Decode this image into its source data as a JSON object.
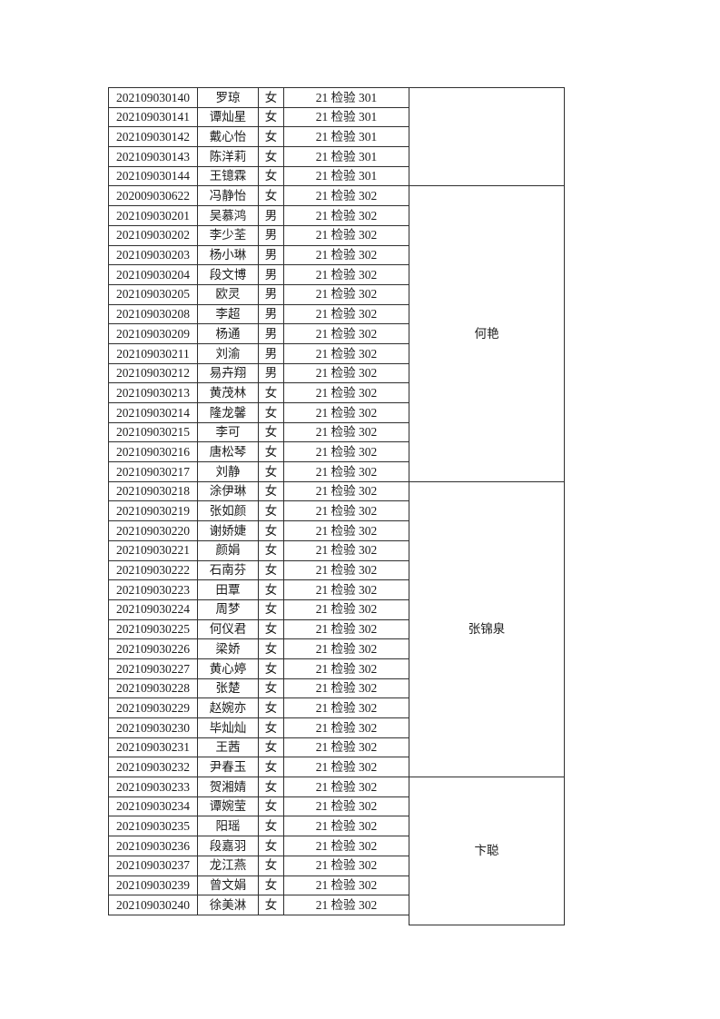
{
  "page": {
    "background_color": "#ffffff",
    "text_color": "#1c1c1c",
    "border_color": "#2f2f2f"
  },
  "table": {
    "columns": [
      "student_id",
      "name",
      "gender",
      "class",
      "teacher"
    ],
    "groups": [
      {
        "teacher": "",
        "rows": [
          {
            "id": "202109030140",
            "name": "罗琼",
            "gender": "女",
            "class": "21 检验 301"
          },
          {
            "id": "202109030141",
            "name": "谭灿星",
            "gender": "女",
            "class": "21 检验 301"
          },
          {
            "id": "202109030142",
            "name": "戴心怡",
            "gender": "女",
            "class": "21 检验 301"
          },
          {
            "id": "202109030143",
            "name": "陈洋莉",
            "gender": "女",
            "class": "21 检验 301"
          },
          {
            "id": "202109030144",
            "name": "王镱霖",
            "gender": "女",
            "class": "21 检验 301"
          }
        ]
      },
      {
        "teacher": "何艳",
        "rows": [
          {
            "id": "202009030622",
            "name": "冯静怡",
            "gender": "女",
            "class": "21 检验 302"
          },
          {
            "id": "202109030201",
            "name": "吴慕鸿",
            "gender": "男",
            "class": "21 检验 302"
          },
          {
            "id": "202109030202",
            "name": "李少荃",
            "gender": "男",
            "class": "21 检验 302"
          },
          {
            "id": "202109030203",
            "name": "杨小琳",
            "gender": "男",
            "class": "21 检验 302"
          },
          {
            "id": "202109030204",
            "name": "段文博",
            "gender": "男",
            "class": "21 检验 302"
          },
          {
            "id": "202109030205",
            "name": "欧灵",
            "gender": "男",
            "class": "21 检验 302"
          },
          {
            "id": "202109030208",
            "name": "李超",
            "gender": "男",
            "class": "21 检验 302"
          },
          {
            "id": "202109030209",
            "name": "杨通",
            "gender": "男",
            "class": "21 检验 302"
          },
          {
            "id": "202109030211",
            "name": "刘渝",
            "gender": "男",
            "class": "21 检验 302"
          },
          {
            "id": "202109030212",
            "name": "易卉翔",
            "gender": "男",
            "class": "21 检验 302"
          },
          {
            "id": "202109030213",
            "name": "黄茂林",
            "gender": "女",
            "class": "21 检验 302"
          },
          {
            "id": "202109030214",
            "name": "隆龙馨",
            "gender": "女",
            "class": "21 检验 302"
          },
          {
            "id": "202109030215",
            "name": "李可",
            "gender": "女",
            "class": "21 检验 302"
          },
          {
            "id": "202109030216",
            "name": "唐松琴",
            "gender": "女",
            "class": "21 检验 302"
          },
          {
            "id": "202109030217",
            "name": "刘静",
            "gender": "女",
            "class": "21 检验 302"
          }
        ]
      },
      {
        "teacher": "张锦泉",
        "rows": [
          {
            "id": "202109030218",
            "name": "涂伊琳",
            "gender": "女",
            "class": "21 检验 302"
          },
          {
            "id": "202109030219",
            "name": "张如颜",
            "gender": "女",
            "class": "21 检验 302"
          },
          {
            "id": "202109030220",
            "name": "谢娇婕",
            "gender": "女",
            "class": "21 检验 302"
          },
          {
            "id": "202109030221",
            "name": "颜娟",
            "gender": "女",
            "class": "21 检验 302"
          },
          {
            "id": "202109030222",
            "name": "石南芬",
            "gender": "女",
            "class": "21 检验 302"
          },
          {
            "id": "202109030223",
            "name": "田覃",
            "gender": "女",
            "class": "21 检验 302"
          },
          {
            "id": "202109030224",
            "name": "周梦",
            "gender": "女",
            "class": "21 检验 302"
          },
          {
            "id": "202109030225",
            "name": "何仪君",
            "gender": "女",
            "class": "21 检验 302"
          },
          {
            "id": "202109030226",
            "name": "梁娇",
            "gender": "女",
            "class": "21 检验 302"
          },
          {
            "id": "202109030227",
            "name": "黄心婷",
            "gender": "女",
            "class": "21 检验 302"
          },
          {
            "id": "202109030228",
            "name": "张楚",
            "gender": "女",
            "class": "21 检验 302"
          },
          {
            "id": "202109030229",
            "name": "赵婉亦",
            "gender": "女",
            "class": "21 检验 302"
          },
          {
            "id": "202109030230",
            "name": "毕灿灿",
            "gender": "女",
            "class": "21 检验 302"
          },
          {
            "id": "202109030231",
            "name": "王茜",
            "gender": "女",
            "class": "21 检验 302"
          },
          {
            "id": "202109030232",
            "name": "尹春玉",
            "gender": "女",
            "class": "21 检验 302"
          }
        ]
      },
      {
        "teacher": "卞聪",
        "rows": [
          {
            "id": "202109030233",
            "name": "贺湘婧",
            "gender": "女",
            "class": "21 检验 302"
          },
          {
            "id": "202109030234",
            "name": "谭婉莹",
            "gender": "女",
            "class": "21 检验 302"
          },
          {
            "id": "202109030235",
            "name": "阳瑶",
            "gender": "女",
            "class": "21 检验 302"
          },
          {
            "id": "202109030236",
            "name": "段嘉羽",
            "gender": "女",
            "class": "21 检验 302"
          },
          {
            "id": "202109030237",
            "name": "龙江燕",
            "gender": "女",
            "class": "21 检验 302"
          },
          {
            "id": "202109030239",
            "name": "曾文娟",
            "gender": "女",
            "class": "21 检验 302"
          },
          {
            "id": "202109030240",
            "name": "徐美淋",
            "gender": "女",
            "class": "21 检验 302"
          }
        ]
      }
    ]
  }
}
